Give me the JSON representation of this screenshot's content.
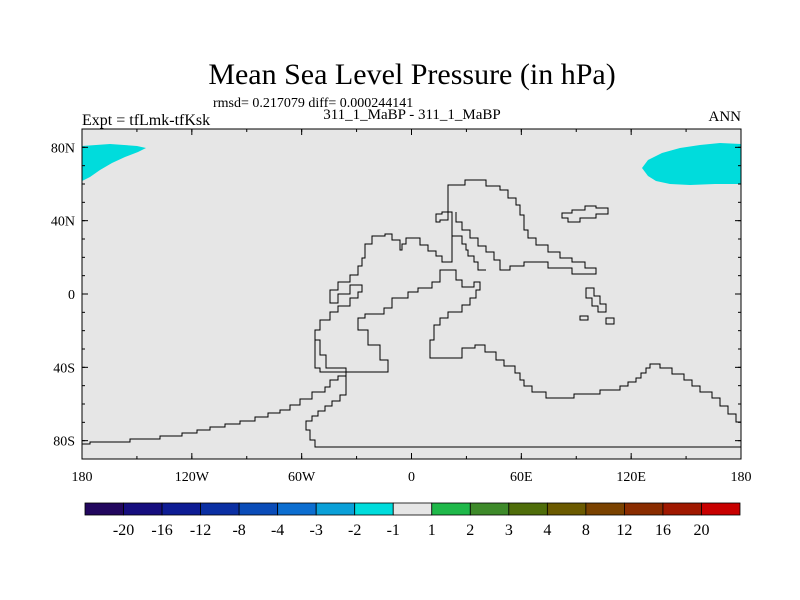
{
  "title": "Mean Sea Level Pressure (in hPa)",
  "stats_line": "rmsd= 0.217079 diff= 0.000244141",
  "experiment_label": "Expt = tfLmk-tfKsk",
  "comparison_label": "311_1_MaBP - 311_1_MaBP",
  "season_label": "ANN",
  "map": {
    "projection": "cylindrical-equidistant",
    "lon_range": [
      -180,
      180
    ],
    "lat_range": [
      -90,
      90
    ],
    "background_color": "#e6e6e6",
    "land_fill": "none",
    "coastline_color": "#000000",
    "anomaly_fill_color": "#00dcdc",
    "anomaly_regions": [
      {
        "name": "arctic-pacific-west",
        "level_range": "-2 to -1"
      },
      {
        "name": "arctic-pacific-east",
        "level_range": "-2 to -1"
      }
    ]
  },
  "y_ticks": [
    {
      "lat": 80,
      "label": "80N"
    },
    {
      "lat": 40,
      "label": "40N"
    },
    {
      "lat": 0,
      "label": "0"
    },
    {
      "lat": -40,
      "label": "40S"
    },
    {
      "lat": -80,
      "label": "80S"
    }
  ],
  "x_ticks": [
    {
      "lon": -180,
      "label": "180"
    },
    {
      "lon": -120,
      "label": "120W"
    },
    {
      "lon": -60,
      "label": "60W"
    },
    {
      "lon": 0,
      "label": "0"
    },
    {
      "lon": 60,
      "label": "60E"
    },
    {
      "lon": 120,
      "label": "120E"
    },
    {
      "lon": 180,
      "label": "180"
    }
  ],
  "colorbar": {
    "colors": [
      "#22075e",
      "#160e7e",
      "#0e1c94",
      "#0a2fa3",
      "#0a4cb8",
      "#0c6ed0",
      "#0aa0d8",
      "#00dcdc",
      "#e6e6e6",
      "#1fb84a",
      "#3e8a2a",
      "#4f6d0a",
      "#6b5a00",
      "#7a4200",
      "#8a2c00",
      "#a01800",
      "#c80000"
    ],
    "labels": [
      "-20",
      "-16",
      "-12",
      "-8",
      "-4",
      "-3",
      "-2",
      "-1",
      "1",
      "2",
      "3",
      "4",
      "8",
      "12",
      "16",
      "20"
    ]
  }
}
